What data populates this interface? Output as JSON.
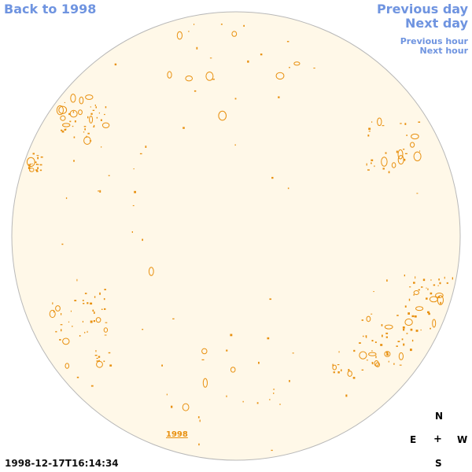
{
  "nav": {
    "back_label": "Back to 1998",
    "prev_day_label": "Previous day",
    "next_day_label": "Next day",
    "prev_hour_label": "Previous hour",
    "next_hour_label": "Next hour"
  },
  "timestamp": "1998-12-17T16:14:34",
  "year_link": "1998",
  "compass": {
    "north": "N",
    "east": "E",
    "center": "+",
    "west": "W",
    "south": "S"
  },
  "colors": {
    "link": "#6f94e0",
    "disk_fill": "#fff8e8",
    "disk_edge": "#bbbbbb",
    "contour": "#e8900f"
  }
}
